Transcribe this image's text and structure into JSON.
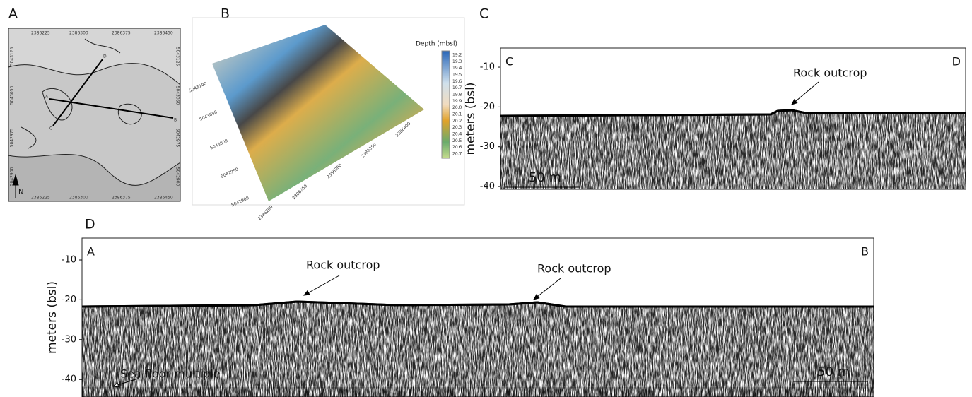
{
  "panel_a": {
    "label": "A",
    "x_labels": [
      "2386225",
      "2386300",
      "2386375",
      "2386450"
    ],
    "y_labels": [
      "5043125",
      "5043050",
      "5042975",
      "5042900"
    ],
    "north": "N",
    "profile_labels": [
      "A",
      "B",
      "C",
      "D"
    ]
  },
  "panel_b": {
    "label": "B",
    "legend_title": "Depth (mbsl)",
    "legend_labels": [
      "19.2",
      "19.3",
      "19.4",
      "19.5",
      "19.6",
      "19.7",
      "19.8",
      "19.9",
      "20.0",
      "20.1",
      "20.2",
      "20.3",
      "20.4",
      "20.5",
      "20.6",
      "20.7"
    ],
    "northing_labels": [
      "5043100",
      "5043050",
      "5043000",
      "5042950",
      "5042900"
    ],
    "easting_labels": [
      "2386200",
      "2386250",
      "2386300",
      "2386350",
      "2386400"
    ]
  },
  "panel_c": {
    "label": "C",
    "ylabel": "meters (bsl)",
    "ylim": [
      -5.2,
      -40.7
    ],
    "yticks": [
      -10,
      -20,
      -30,
      -40
    ],
    "start_label": "C",
    "end_label": "D",
    "annotation": "Rock outcrop",
    "scale_bar": "50 m"
  },
  "panel_d": {
    "label": "D",
    "ylabel": "meters (bsl)",
    "ylim": [
      -4.5,
      -44.4
    ],
    "yticks": [
      -10,
      -20,
      -30,
      -40
    ],
    "start_label": "A",
    "end_label": "B",
    "annotations": [
      "Rock outcrop",
      "Rock outcrop",
      "Sea floor multiple"
    ],
    "scale_bar": "50 m"
  }
}
